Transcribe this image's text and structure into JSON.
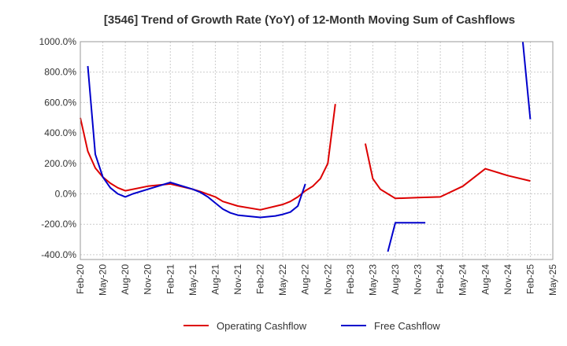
{
  "chart_data": {
    "type": "line",
    "title": "[3546]  Trend of Growth Rate (YoY) of 12-Month Moving Sum of Cashflows",
    "xlabel": "",
    "ylabel": "",
    "ylim": [
      -430,
      1000
    ],
    "y_ticks": [
      -400,
      -200,
      0,
      200,
      400,
      600,
      800,
      1000
    ],
    "y_tick_labels": [
      "-400.0%",
      "-200.0%",
      "0.0%",
      "200.0%",
      "400.0%",
      "600.0%",
      "800.0%",
      "1000.0%"
    ],
    "x_range": [
      "2020-02",
      "2025-05"
    ],
    "x_tick_labels": [
      "Feb-20",
      "May-20",
      "Aug-20",
      "Nov-20",
      "Feb-21",
      "May-21",
      "Aug-21",
      "Nov-21",
      "Feb-22",
      "May-22",
      "Aug-22",
      "Nov-22",
      "Feb-23",
      "May-23",
      "Aug-23",
      "Nov-23",
      "Feb-24",
      "May-24",
      "Aug-24",
      "Nov-24",
      "Feb-25",
      "May-25"
    ],
    "grid": true,
    "legend_position": "bottom",
    "series": [
      {
        "name": "Operating Cashflow",
        "color": "#dd0000",
        "segments": [
          [
            [
              "2020-02",
              500
            ],
            [
              "2020-03",
              280
            ],
            [
              "2020-04",
              170
            ],
            [
              "2020-05",
              110
            ],
            [
              "2020-06",
              70
            ],
            [
              "2020-07",
              40
            ],
            [
              "2020-08",
              20
            ],
            [
              "2020-11",
              50
            ],
            [
              "2021-02",
              65
            ],
            [
              "2021-05",
              30
            ],
            [
              "2021-06",
              15
            ],
            [
              "2021-08",
              -20
            ],
            [
              "2021-09",
              -50
            ],
            [
              "2021-11",
              -80
            ],
            [
              "2022-02",
              -105
            ],
            [
              "2022-05",
              -70
            ],
            [
              "2022-06",
              -50
            ],
            [
              "2022-07",
              -20
            ],
            [
              "2022-08",
              20
            ],
            [
              "2022-09",
              50
            ],
            [
              "2022-10",
              100
            ],
            [
              "2022-11",
              200
            ],
            [
              "2022-12",
              590
            ]
          ],
          [
            [
              "2023-04",
              330
            ],
            [
              "2023-05",
              100
            ],
            [
              "2023-06",
              30
            ],
            [
              "2023-07",
              0
            ],
            [
              "2023-08",
              -30
            ],
            [
              "2023-11",
              -25
            ],
            [
              "2024-02",
              -20
            ],
            [
              "2024-05",
              50
            ],
            [
              "2024-08",
              165
            ],
            [
              "2024-11",
              120
            ],
            [
              "2025-02",
              85
            ]
          ]
        ]
      },
      {
        "name": "Free Cashflow",
        "color": "#0000cc",
        "segments": [
          [
            [
              "2020-03",
              840
            ],
            [
              "2020-04",
              260
            ],
            [
              "2020-05",
              110
            ],
            [
              "2020-06",
              40
            ],
            [
              "2020-07",
              0
            ],
            [
              "2020-08",
              -20
            ],
            [
              "2020-09",
              0
            ],
            [
              "2020-11",
              30
            ],
            [
              "2021-02",
              75
            ],
            [
              "2021-05",
              30
            ],
            [
              "2021-06",
              10
            ],
            [
              "2021-07",
              -20
            ],
            [
              "2021-08",
              -60
            ],
            [
              "2021-09",
              -100
            ],
            [
              "2021-10",
              -125
            ],
            [
              "2021-11",
              -140
            ],
            [
              "2022-02",
              -155
            ],
            [
              "2022-04",
              -145
            ],
            [
              "2022-05",
              -135
            ],
            [
              "2022-06",
              -120
            ],
            [
              "2022-07",
              -80
            ],
            [
              "2022-08",
              65
            ]
          ],
          [
            [
              "2023-07",
              -380
            ],
            [
              "2023-08",
              -190
            ],
            [
              "2023-11",
              -190
            ],
            [
              "2023-12",
              -190
            ]
          ],
          [
            [
              "2025-01",
              1000
            ],
            [
              "2025-02",
              490
            ]
          ]
        ]
      }
    ]
  }
}
